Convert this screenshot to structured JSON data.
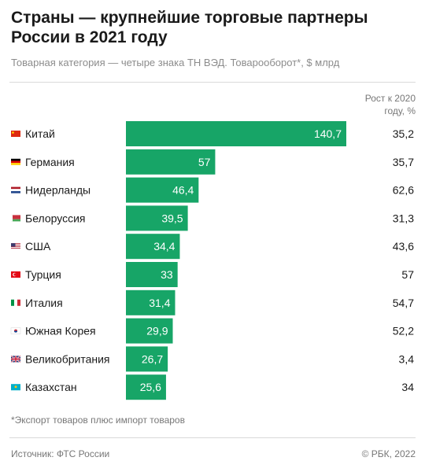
{
  "header": {
    "title": "Страны — крупнейшие торговые партнеры России в 2021 году",
    "subtitle": "Товарная категория — четыре знака ТН ВЭД. Товарооборот*, $ млрд"
  },
  "growth_header": {
    "line1": "Рост к 2020",
    "line2": "году, %"
  },
  "footer": {
    "footnote": "*Экспорт товаров плюс импорт товаров",
    "source": "Источник: ФТС России",
    "copyright": "© РБК, 2022"
  },
  "colors": {
    "bar": "#17a567",
    "bar_label": "#ffffff",
    "text": "#1a1a1a",
    "muted": "#8c8c8c"
  },
  "chart_data": {
    "type": "bar",
    "orientation": "horizontal",
    "categories": [
      "Китай",
      "Германия",
      "Нидерланды",
      "Белоруссия",
      "США",
      "Турция",
      "Италия",
      "Южная Корея",
      "Великобритания",
      "Казахстан"
    ],
    "flags": [
      "china-flag-icon",
      "germany-flag-icon",
      "netherlands-flag-icon",
      "belarus-flag-icon",
      "usa-flag-icon",
      "turkey-flag-icon",
      "italy-flag-icon",
      "south-korea-flag-icon",
      "uk-flag-icon",
      "kazakhstan-flag-icon"
    ],
    "series": [
      {
        "values": [
          140.7,
          57,
          46.4,
          39.5,
          34.4,
          33,
          31.4,
          29.9,
          26.7,
          25.6
        ],
        "labels": [
          "140,7",
          "57",
          "46,4",
          "39,5",
          "34,4",
          "33",
          "31,4",
          "29,9",
          "26,7",
          "25,6"
        ]
      }
    ],
    "growth": {
      "values": [
        35.2,
        35.7,
        62.6,
        31.3,
        43.6,
        57,
        54.7,
        52.2,
        3.4,
        34
      ],
      "labels": [
        "35,2",
        "35,7",
        "62,6",
        "31,3",
        "43,6",
        "57",
        "54,7",
        "52,2",
        "3,4",
        "34"
      ]
    },
    "xlim": [
      0,
      140.7
    ],
    "grid": false,
    "legend": "none"
  }
}
